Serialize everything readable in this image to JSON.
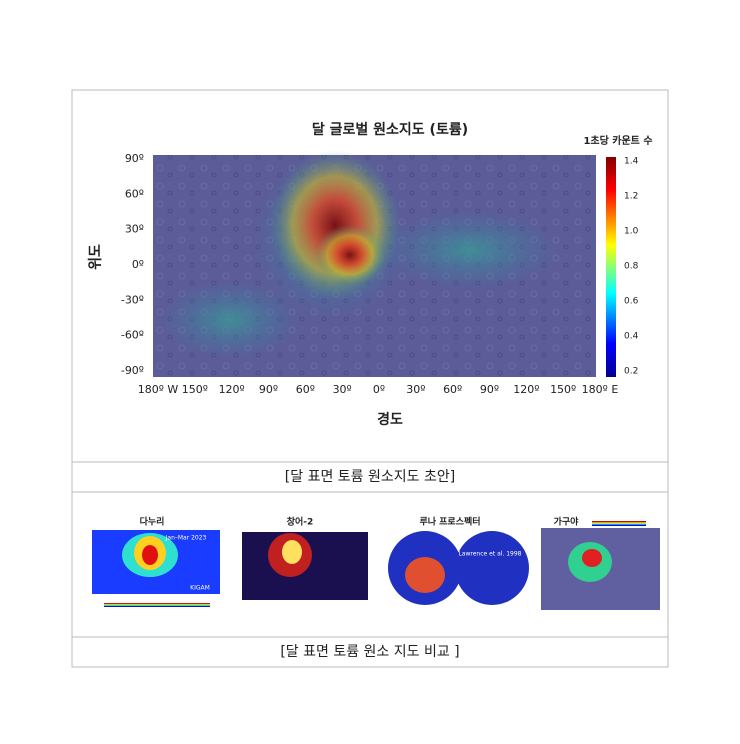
{
  "figure": {
    "title": "달 글로벌 원소지도 (토륨)",
    "colorbar_label": "1초당 카운트 수",
    "colorbar_ticks": [
      "1.4",
      "1.2",
      "1.0",
      "0.8",
      "0.6",
      "0.4",
      "0.2"
    ],
    "y_axis_title": "위도",
    "y_ticks": [
      "90º",
      "60º",
      "30º",
      "0º",
      "-30º",
      "-60º",
      "-90º"
    ],
    "x_axis_title": "경도",
    "x_ticks": [
      "180º W",
      "150º",
      "120º",
      "90º",
      "60º",
      "30º",
      "0º",
      "30º",
      "60º",
      "90º",
      "120º",
      "150º",
      "180º E"
    ],
    "caption": "[달 표면 토륨 원소지도 초안]"
  },
  "comparison": {
    "panels": [
      {
        "label": "다누리",
        "notes": [
          "Jan–Mar 2023",
          "KIGAM"
        ]
      },
      {
        "label": "창어-2",
        "notes": []
      },
      {
        "label": "루나 프로스펙터",
        "notes": [
          "Lawrence et al. 1998"
        ]
      },
      {
        "label": "가구야",
        "notes": []
      }
    ],
    "caption": "[달 표면 토륨 원소 지도 비교 ]"
  }
}
